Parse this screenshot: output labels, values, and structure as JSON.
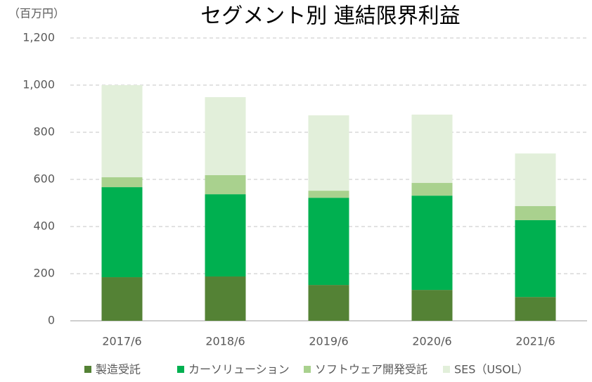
{
  "chart_data": {
    "type": "stacked_bar",
    "title": "セグメント別 連結限界利益",
    "y_label": "（百万円）",
    "categories": [
      "2017/6",
      "2018/6",
      "2019/6",
      "2020/6",
      "2021/6"
    ],
    "series": [
      {
        "name": "製造受託",
        "color": "#548235",
        "values": [
          185,
          188,
          152,
          131,
          101
        ]
      },
      {
        "name": "カーソリューション",
        "color": "#00b050",
        "values": [
          382,
          349,
          370,
          400,
          326
        ]
      },
      {
        "name": "ソフトウェア開発受託",
        "color": "#a9d18e",
        "values": [
          42,
          81,
          30,
          54,
          60
        ]
      },
      {
        "name": "SES（USOL）",
        "color": "#e2efda",
        "values": [
          391,
          331,
          320,
          290,
          223
        ]
      }
    ],
    "ylim": [
      0,
      1200
    ],
    "yticks": [
      0,
      200,
      400,
      600,
      800,
      {
        "value": 1000,
        "label": "1,000"
      },
      {
        "value": 1200,
        "label": "1,200"
      }
    ],
    "grid": true,
    "legend": "bottom"
  }
}
